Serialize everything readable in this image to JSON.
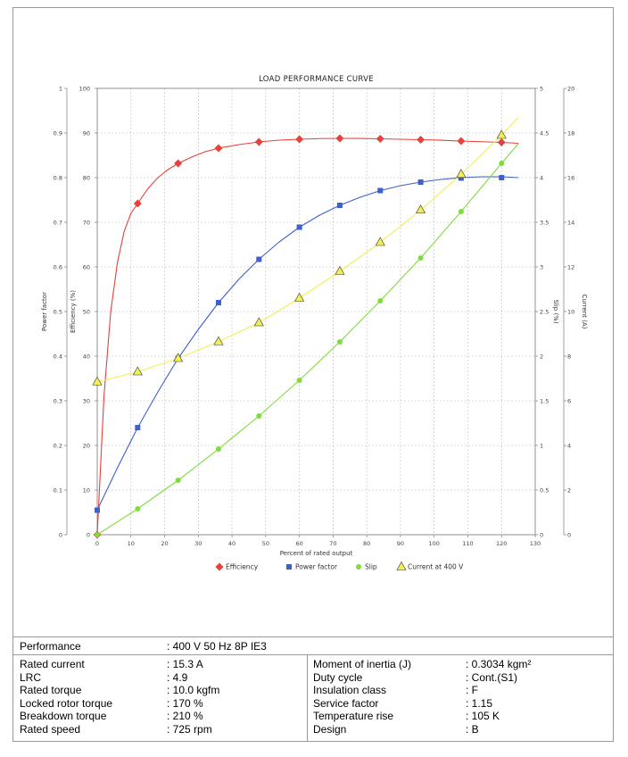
{
  "chart_data": {
    "type": "line",
    "title": "LOAD PERFORMANCE CURVE",
    "xlabel": "Percent of rated output",
    "xlim": [
      0,
      130
    ],
    "x_ticks": [
      0,
      10,
      20,
      30,
      40,
      50,
      60,
      70,
      80,
      90,
      100,
      110,
      120,
      130
    ],
    "grid": true,
    "legend_position": "bottom",
    "axes": {
      "power_factor": {
        "label": "Power factor",
        "range": [
          0,
          1
        ],
        "ticks": [
          "0",
          "0.1",
          "0.2",
          "0.3",
          "0.4",
          "0.5",
          "0.6",
          "0.7",
          "0.8",
          "0.9",
          "1"
        ]
      },
      "efficiency": {
        "label": "Efficiency (%)",
        "range": [
          0,
          100
        ],
        "ticks": [
          "0",
          "10",
          "20",
          "30",
          "40",
          "50",
          "60",
          "70",
          "80",
          "90",
          "100"
        ]
      },
      "slip": {
        "label": "Slip (%)",
        "range": [
          0,
          5
        ],
        "ticks": [
          "0",
          "0.5",
          "1",
          "1.5",
          "2",
          "2.5",
          "3",
          "3.5",
          "4",
          "4.5",
          "5"
        ]
      },
      "current": {
        "label": "Current (A)",
        "range": [
          0,
          20
        ],
        "ticks": [
          "0",
          "2",
          "4",
          "6",
          "8",
          "10",
          "12",
          "14",
          "16",
          "18",
          "20"
        ]
      }
    },
    "series": [
      {
        "name": "Efficiency",
        "axis": "efficiency",
        "color": "#e8403a",
        "marker": "diamond",
        "x": [
          0,
          12,
          24,
          36,
          48,
          60,
          72,
          84,
          96,
          108,
          120
        ],
        "y": [
          0,
          74.2,
          83.2,
          86.6,
          88.0,
          88.6,
          88.8,
          88.7,
          88.5,
          88.2,
          87.9
        ],
        "curve_x": [
          0,
          2,
          4,
          6,
          8,
          10,
          12,
          15,
          18,
          21,
          24,
          28,
          32,
          36,
          42,
          48,
          54,
          60,
          66,
          72,
          78,
          84,
          90,
          96,
          102,
          108,
          114,
          120,
          125
        ],
        "curve_y": [
          0,
          31,
          50,
          61,
          68,
          72,
          74.2,
          77.5,
          80,
          81.8,
          83.2,
          84.6,
          85.8,
          86.6,
          87.4,
          88.0,
          88.4,
          88.6,
          88.75,
          88.8,
          88.78,
          88.7,
          88.6,
          88.5,
          88.38,
          88.2,
          88.05,
          87.9,
          87.7
        ]
      },
      {
        "name": "Power factor",
        "axis": "power_factor",
        "color": "#3f60cc",
        "marker": "square",
        "x": [
          0,
          12,
          24,
          36,
          48,
          60,
          72,
          84,
          96,
          108,
          120
        ],
        "y": [
          0.055,
          0.24,
          0.395,
          0.52,
          0.617,
          0.689,
          0.738,
          0.771,
          0.79,
          0.799,
          0.8
        ],
        "curve_x": [
          0,
          6,
          12,
          18,
          24,
          30,
          36,
          42,
          48,
          54,
          60,
          66,
          72,
          78,
          84,
          90,
          96,
          102,
          108,
          114,
          120,
          125
        ],
        "curve_y": [
          0.055,
          0.15,
          0.24,
          0.32,
          0.395,
          0.46,
          0.52,
          0.572,
          0.617,
          0.656,
          0.689,
          0.716,
          0.738,
          0.756,
          0.771,
          0.782,
          0.79,
          0.796,
          0.8,
          0.802,
          0.802,
          0.8
        ]
      },
      {
        "name": "Slip",
        "axis": "slip",
        "color": "#7fdc3c",
        "marker": "circle",
        "x": [
          0,
          12,
          24,
          36,
          48,
          60,
          72,
          84,
          96,
          108,
          120
        ],
        "y": [
          0,
          0.29,
          0.61,
          0.96,
          1.33,
          1.73,
          2.16,
          2.62,
          3.1,
          3.62,
          4.16
        ],
        "curve_x": [
          0,
          12,
          24,
          36,
          48,
          60,
          72,
          84,
          96,
          108,
          120,
          125
        ],
        "curve_y": [
          0,
          0.29,
          0.61,
          0.96,
          1.33,
          1.73,
          2.16,
          2.62,
          3.1,
          3.62,
          4.16,
          4.38
        ]
      },
      {
        "name": "Current at 400 V",
        "axis": "current",
        "color": "#f2ef55",
        "marker": "triangle",
        "x": [
          0,
          12,
          24,
          36,
          48,
          60,
          72,
          84,
          96,
          108,
          120
        ],
        "y": [
          6.85,
          7.3,
          7.9,
          8.65,
          9.5,
          10.6,
          11.8,
          13.1,
          14.55,
          16.15,
          17.9
        ],
        "curve_x": [
          0,
          12,
          24,
          36,
          48,
          60,
          72,
          84,
          96,
          108,
          120,
          125
        ],
        "curve_y": [
          6.85,
          7.3,
          7.9,
          8.65,
          9.5,
          10.6,
          11.8,
          13.1,
          14.55,
          16.15,
          17.9,
          18.7
        ]
      }
    ]
  },
  "specs": {
    "performance_label": "Performance",
    "performance_value": ": 400 V 50 Hz 8P IE3",
    "left": [
      {
        "label": "Rated current",
        "value": ": 15.3 A"
      },
      {
        "label": "LRC",
        "value": ": 4.9"
      },
      {
        "label": "Rated torque",
        "value": ": 10.0 kgfm"
      },
      {
        "label": "Locked rotor torque",
        "value": ": 170 %"
      },
      {
        "label": "Breakdown torque",
        "value": ": 210 %"
      },
      {
        "label": "Rated speed",
        "value": ": 725 rpm"
      }
    ],
    "right": [
      {
        "label": "Moment of inertia (J)",
        "value": ": 0.3034 kgm²"
      },
      {
        "label": "Duty cycle",
        "value": ": Cont.(S1)"
      },
      {
        "label": "Insulation class",
        "value": ": F"
      },
      {
        "label": "Service factor",
        "value": ": 1.15"
      },
      {
        "label": "Temperature rise",
        "value": ": 105 K"
      },
      {
        "label": "Design",
        "value": ": B"
      }
    ]
  }
}
